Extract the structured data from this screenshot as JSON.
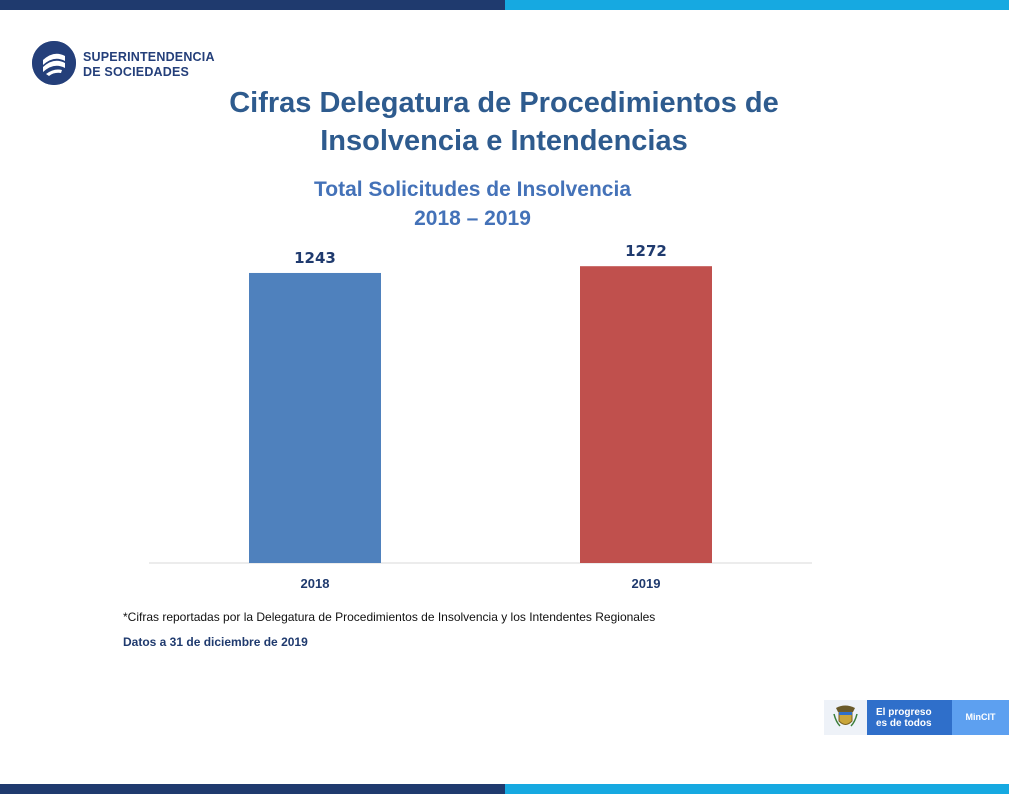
{
  "header": {
    "logo_line1": "SUPERINTENDENCIA",
    "logo_line2": "DE SOCIEDADES",
    "title_line1": "Cifras Delegatura de Procedimientos de",
    "title_line2": "Insolvencia e Intendencias"
  },
  "colors": {
    "band_dark": "#1f3a6e",
    "band_light": "#16a9e1",
    "title": "#2e5b8e",
    "subtitle": "#4472b8",
    "bar_2018": "#4f81bd",
    "bar_2019": "#c0504d"
  },
  "chart_data": {
    "type": "bar",
    "title": "Total Solicitudes de Insolvencia",
    "subtitle": "2018 – 2019",
    "categories": [
      "2018",
      "2019"
    ],
    "values": [
      1243,
      1272
    ],
    "data_labels": [
      "1243",
      "1272"
    ],
    "bar_colors": [
      "#4f81bd",
      "#c0504d"
    ],
    "xlabel": "",
    "ylabel": "",
    "ylim": [
      0,
      1350
    ],
    "grid": false,
    "legend": "none"
  },
  "footnote": {
    "note": "*Cifras reportadas por la Delegatura de Procedimientos de Insolvencia y los Intendentes Regionales",
    "date": "Datos a 31 de diciembre de 2019"
  },
  "footer_badge": {
    "line1": "El progreso",
    "line2": "es de todos",
    "ministry": "MinCIT"
  }
}
